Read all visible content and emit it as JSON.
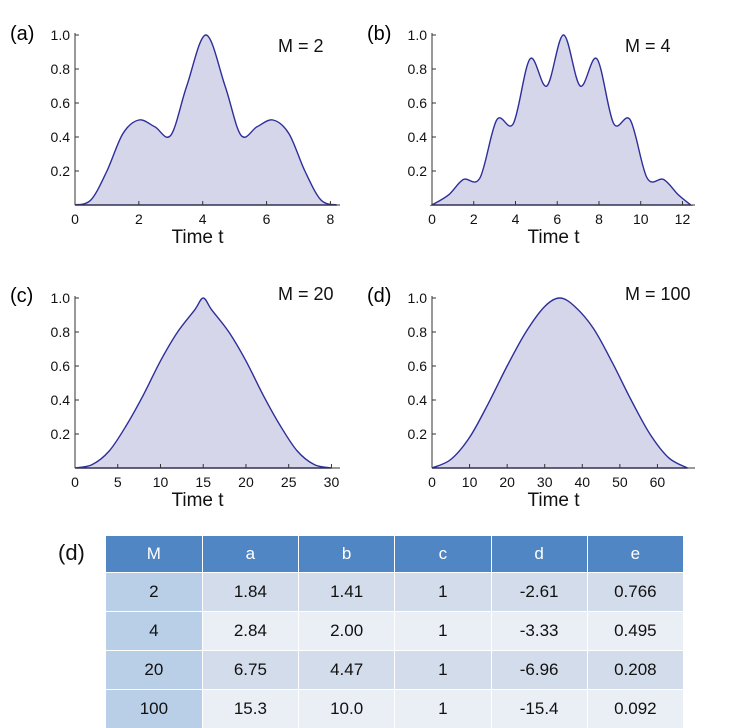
{
  "chart_data": [
    {
      "type": "area",
      "panel": "(a)",
      "annotation": "M = 2",
      "xlabel": "Time t",
      "xlim": [
        0,
        8.3
      ],
      "ylim": [
        0,
        1.0
      ],
      "xticks": [
        0,
        2,
        4,
        6,
        8
      ],
      "yticks": [
        0.2,
        0.4,
        0.6,
        0.8,
        1.0
      ],
      "x": [
        0,
        0.5,
        1.0,
        1.5,
        2.0,
        2.5,
        3.0,
        3.5,
        4.1,
        4.7,
        5.2,
        5.7,
        6.2,
        6.7,
        7.2,
        7.7,
        8.2
      ],
      "y": [
        0.0,
        0.03,
        0.2,
        0.42,
        0.5,
        0.46,
        0.41,
        0.7,
        1.0,
        0.7,
        0.41,
        0.46,
        0.5,
        0.42,
        0.2,
        0.03,
        0.0
      ]
    },
    {
      "type": "area",
      "panel": "(b)",
      "annotation": "M = 4",
      "xlabel": "Time t",
      "xlim": [
        0,
        12.6
      ],
      "ylim": [
        0,
        1.0
      ],
      "xticks": [
        0,
        2,
        4,
        6,
        8,
        10,
        12
      ],
      "yticks": [
        0.2,
        0.4,
        0.6,
        0.8,
        1.0
      ],
      "x": [
        0,
        0.8,
        1.5,
        2.3,
        3.1,
        3.9,
        4.7,
        5.5,
        6.3,
        7.1,
        7.9,
        8.7,
        9.5,
        10.3,
        11.1,
        11.8,
        12.4
      ],
      "y": [
        0.0,
        0.06,
        0.15,
        0.16,
        0.5,
        0.48,
        0.86,
        0.7,
        1.0,
        0.7,
        0.86,
        0.48,
        0.5,
        0.16,
        0.15,
        0.06,
        0.0
      ]
    },
    {
      "type": "area",
      "panel": "(c)",
      "annotation": "M = 20",
      "xlabel": "Time t",
      "xlim": [
        0,
        31
      ],
      "ylim": [
        0,
        1.0
      ],
      "xticks": [
        0,
        5,
        10,
        15,
        20,
        25,
        30
      ],
      "yticks": [
        0.2,
        0.4,
        0.6,
        0.8,
        1.0
      ],
      "x": [
        0,
        2,
        4,
        6,
        8,
        10,
        12,
        14,
        15,
        16,
        18,
        20,
        22,
        24,
        26,
        28,
        30
      ],
      "y": [
        0.0,
        0.02,
        0.1,
        0.25,
        0.43,
        0.63,
        0.8,
        0.93,
        1.0,
        0.93,
        0.8,
        0.63,
        0.43,
        0.25,
        0.1,
        0.02,
        0.0
      ]
    },
    {
      "type": "area",
      "panel": "(d)",
      "annotation": "M = 100",
      "xlabel": "Time t",
      "xlim": [
        0,
        70
      ],
      "ylim": [
        0,
        1.0
      ],
      "xticks": [
        0,
        10,
        20,
        30,
        40,
        50,
        60
      ],
      "yticks": [
        0.2,
        0.4,
        0.6,
        0.8,
        1.0
      ],
      "x": [
        0,
        5,
        10,
        15,
        20,
        25,
        30,
        34,
        38,
        43,
        48,
        53,
        58,
        63,
        68
      ],
      "y": [
        0.0,
        0.05,
        0.18,
        0.38,
        0.6,
        0.8,
        0.95,
        1.0,
        0.95,
        0.82,
        0.62,
        0.4,
        0.2,
        0.06,
        0.0
      ]
    }
  ],
  "table": {
    "label": "(d)",
    "headers": [
      "M",
      "a",
      "b",
      "c",
      "d",
      "e"
    ],
    "rows": [
      [
        "2",
        "1.84",
        "1.41",
        "1",
        "-2.61",
        "0.766"
      ],
      [
        "4",
        "2.84",
        "2.00",
        "1",
        "-3.33",
        "0.495"
      ],
      [
        "20",
        "6.75",
        "4.47",
        "1",
        "-6.96",
        "0.208"
      ],
      [
        "100",
        "15.3",
        "10.0",
        "1",
        "-15.4",
        "0.092"
      ]
    ]
  }
}
